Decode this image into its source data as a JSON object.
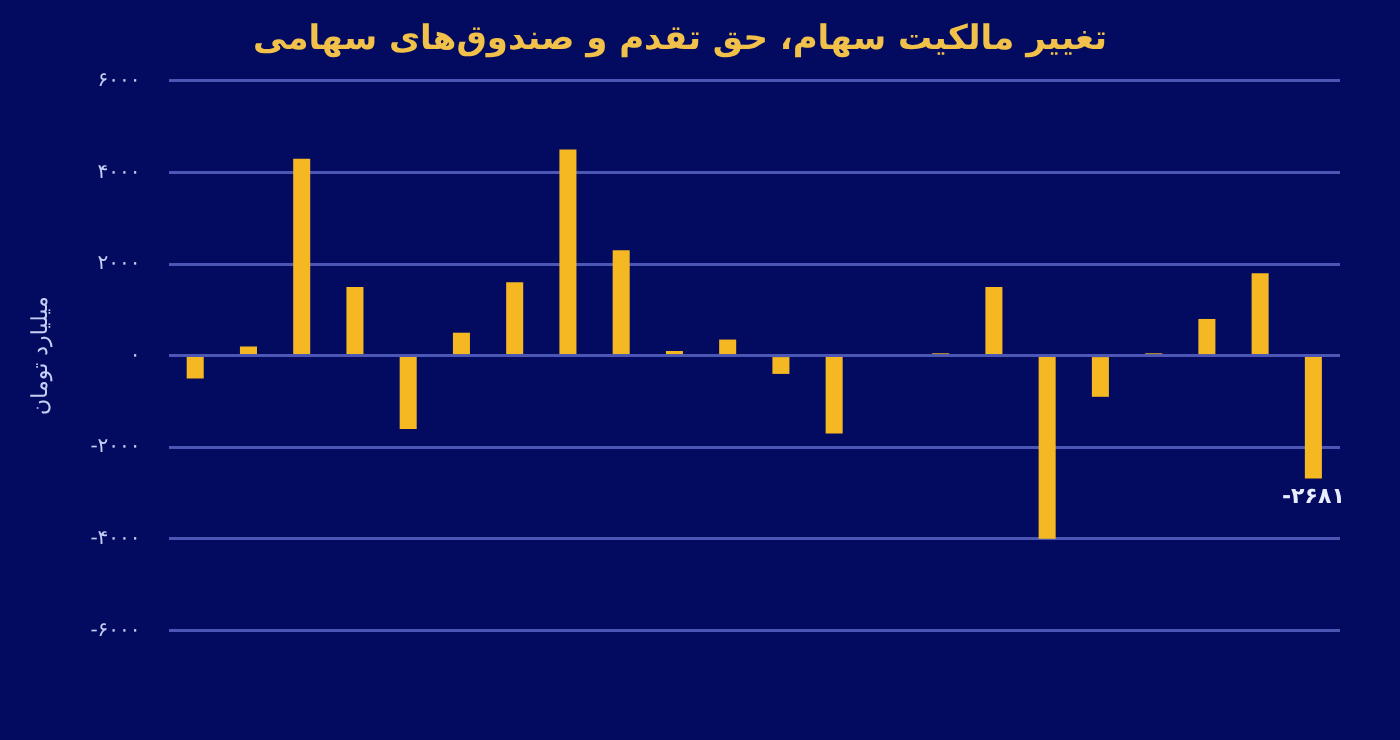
{
  "chart_data": {
    "type": "bar",
    "title": "تغییر مالکیت سهام، حق تقدم و صندوق‌های سهامی",
    "ylabel": "میلیارد تومان",
    "categories": [
      null,
      null,
      null,
      null,
      null,
      null,
      null,
      null,
      null,
      null,
      null,
      null,
      null,
      null,
      null,
      null,
      null,
      null,
      null,
      null,
      null,
      null
    ],
    "values": [
      -500,
      200,
      4300,
      1500,
      -1600,
      500,
      1600,
      4500,
      2300,
      100,
      350,
      -400,
      -1700,
      0,
      50,
      1500,
      -4000,
      -900,
      50,
      800,
      1800,
      -2681
    ],
    "value_labels": [
      null,
      null,
      null,
      null,
      null,
      null,
      null,
      null,
      null,
      null,
      null,
      null,
      null,
      null,
      null,
      null,
      null,
      null,
      null,
      null,
      null,
      "-۲۶۸۱"
    ],
    "color": "#f5b822",
    "ylim": [
      -6000,
      6000
    ],
    "yticks": [
      {
        "value": -6000,
        "label": "-۶۰۰۰"
      },
      {
        "value": -4000,
        "label": "-۴۰۰۰"
      },
      {
        "value": -2000,
        "label": "-۲۰۰۰"
      },
      {
        "value": 0,
        "label": "۰"
      },
      {
        "value": 2000,
        "label": "۲۰۰۰"
      },
      {
        "value": 4000,
        "label": "۴۰۰۰"
      },
      {
        "value": 6000,
        "label": "۶۰۰۰"
      }
    ],
    "grid": "y",
    "legend": false
  }
}
